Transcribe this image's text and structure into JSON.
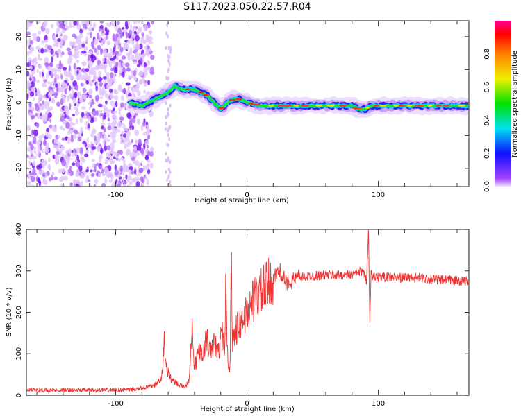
{
  "title": "S117.2023.050.22.57.R04",
  "chart_data": [
    {
      "type": "heatmap",
      "title": "S117.2023.050.22.57.R04",
      "xlabel": "Height of straight line (km)",
      "ylabel": "Frequency (Hz)",
      "xlim": [
        -168,
        169
      ],
      "ylim": [
        -25.5,
        24.8
      ],
      "xticks": [
        -100,
        0,
        100
      ],
      "xtick_labels": [
        "-100",
        "0",
        "100"
      ],
      "yticks": [
        -20,
        -10,
        0,
        10,
        20
      ],
      "ytick_labels": [
        "-20",
        "-10",
        "0",
        "10",
        "20"
      ],
      "colorbar": {
        "label": "Normalized spectral amplitude",
        "range": [
          0,
          1
        ],
        "ticks": [
          "0.0",
          "0.2",
          "0.4",
          "0.6",
          "0.8"
        ],
        "tick_values": [
          0,
          0.2,
          0.4,
          0.6,
          0.8
        ]
      },
      "noise_region_x": [
        -168,
        -80
      ],
      "ridge": {
        "x": [
          -90,
          -80,
          -70,
          -60,
          -55,
          -50,
          -40,
          -30,
          -25,
          -20,
          -15,
          -10,
          -5,
          0,
          10,
          20,
          80,
          85,
          90,
          95,
          169
        ],
        "freq": [
          0,
          -1,
          1,
          3,
          5,
          4,
          4,
          2,
          0,
          -2,
          0,
          1,
          1,
          0,
          -1,
          -1,
          -1,
          -2,
          -2,
          -1,
          -1
        ]
      }
    },
    {
      "type": "line",
      "xlabel": "Height of straight line (km)",
      "ylabel": "SNR (10 * v/v)",
      "xlim": [
        -168,
        169
      ],
      "ylim": [
        0,
        400
      ],
      "xticks": [
        -100,
        0,
        100
      ],
      "xtick_labels": [
        "-100",
        "0",
        "100"
      ],
      "yticks": [
        0,
        100,
        200,
        300,
        400
      ],
      "ytick_labels": [
        "0",
        "100",
        "200",
        "300",
        "400"
      ],
      "series": [
        {
          "name": "SNR",
          "color": "#ee3333",
          "x": [
            -168,
            -140,
            -110,
            -85,
            -75,
            -70,
            -65,
            -63,
            -61,
            -58,
            -52,
            -47,
            -44,
            -42,
            -40,
            -37,
            -34,
            -31,
            -28,
            -25,
            -22,
            -19,
            -17,
            -16,
            -15,
            -13,
            -12,
            -11,
            -9,
            -6,
            -3,
            0,
            5,
            10,
            15,
            20,
            25,
            30,
            40,
            60,
            80,
            88,
            91,
            92.5,
            93.5,
            94.5,
            96,
            100,
            130,
            150,
            169
          ],
          "y": [
            12,
            12,
            12,
            14,
            20,
            25,
            40,
            130,
            60,
            40,
            25,
            20,
            40,
            170,
            60,
            110,
            90,
            140,
            100,
            130,
            100,
            150,
            120,
            280,
            100,
            60,
            330,
            140,
            150,
            170,
            185,
            200,
            230,
            245,
            260,
            280,
            300,
            270,
            285,
            290,
            290,
            300,
            280,
            400,
            170,
            300,
            285,
            285,
            283,
            278,
            275
          ]
        }
      ]
    }
  ]
}
